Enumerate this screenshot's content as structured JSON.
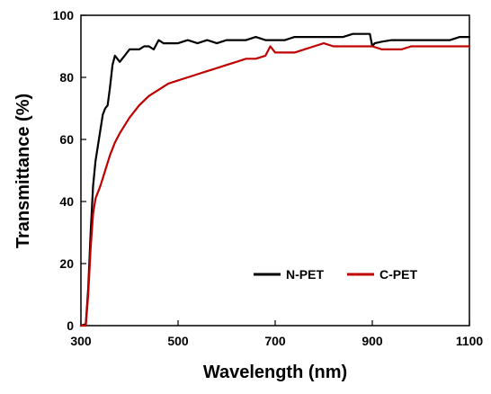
{
  "chart_data": {
    "type": "line",
    "xlabel": "Wavelength (nm)",
    "ylabel": "Transmittance (%)",
    "xlim": [
      300,
      1100
    ],
    "ylim": [
      0,
      100
    ],
    "xticks": [
      300,
      500,
      700,
      900,
      1100
    ],
    "yticks": [
      0,
      20,
      40,
      60,
      80,
      100
    ],
    "x_tick_labels": [
      "300",
      "500",
      "700",
      "900",
      "1100"
    ],
    "y_tick_labels": [
      "0",
      "20",
      "40",
      "60",
      "80",
      "100"
    ],
    "grid": false,
    "legend_position": "bottom-right",
    "series": [
      {
        "name": "N-PET",
        "color": "#000000",
        "points": [
          [
            300,
            0
          ],
          [
            310,
            0.5
          ],
          [
            315,
            12
          ],
          [
            320,
            30
          ],
          [
            325,
            45
          ],
          [
            330,
            53
          ],
          [
            340,
            63
          ],
          [
            345,
            68
          ],
          [
            350,
            70
          ],
          [
            355,
            71
          ],
          [
            360,
            77
          ],
          [
            365,
            84
          ],
          [
            370,
            87
          ],
          [
            380,
            85
          ],
          [
            385,
            86
          ],
          [
            390,
            87
          ],
          [
            400,
            89
          ],
          [
            410,
            89
          ],
          [
            420,
            89
          ],
          [
            430,
            90
          ],
          [
            440,
            90
          ],
          [
            450,
            89
          ],
          [
            460,
            92
          ],
          [
            470,
            91
          ],
          [
            480,
            91
          ],
          [
            500,
            91
          ],
          [
            520,
            92
          ],
          [
            540,
            91
          ],
          [
            560,
            92
          ],
          [
            580,
            91
          ],
          [
            600,
            92
          ],
          [
            620,
            92
          ],
          [
            640,
            92
          ],
          [
            660,
            93
          ],
          [
            680,
            92
          ],
          [
            700,
            92
          ],
          [
            720,
            92
          ],
          [
            740,
            93
          ],
          [
            760,
            93
          ],
          [
            780,
            93
          ],
          [
            800,
            93
          ],
          [
            820,
            93
          ],
          [
            840,
            93
          ],
          [
            860,
            94
          ],
          [
            880,
            94
          ],
          [
            895,
            94
          ],
          [
            900,
            90
          ],
          [
            905,
            91
          ],
          [
            920,
            91.5
          ],
          [
            940,
            92
          ],
          [
            960,
            92
          ],
          [
            980,
            92
          ],
          [
            1000,
            92
          ],
          [
            1020,
            92
          ],
          [
            1040,
            92
          ],
          [
            1060,
            92
          ],
          [
            1080,
            93
          ],
          [
            1100,
            93
          ]
        ]
      },
      {
        "name": "C-PET",
        "color": "#c00000",
        "points": [
          [
            300,
            0
          ],
          [
            310,
            0
          ],
          [
            315,
            10
          ],
          [
            320,
            25
          ],
          [
            325,
            36
          ],
          [
            330,
            41
          ],
          [
            340,
            45
          ],
          [
            350,
            50
          ],
          [
            360,
            55
          ],
          [
            370,
            59
          ],
          [
            380,
            62
          ],
          [
            400,
            67
          ],
          [
            420,
            71
          ],
          [
            440,
            74
          ],
          [
            460,
            76
          ],
          [
            480,
            78
          ],
          [
            500,
            79
          ],
          [
            520,
            80
          ],
          [
            540,
            81
          ],
          [
            560,
            82
          ],
          [
            580,
            83
          ],
          [
            600,
            84
          ],
          [
            620,
            85
          ],
          [
            640,
            86
          ],
          [
            660,
            86
          ],
          [
            680,
            87
          ],
          [
            690,
            90
          ],
          [
            700,
            88
          ],
          [
            720,
            88
          ],
          [
            740,
            88
          ],
          [
            760,
            89
          ],
          [
            780,
            90
          ],
          [
            800,
            91
          ],
          [
            820,
            90
          ],
          [
            840,
            90
          ],
          [
            860,
            90
          ],
          [
            880,
            90
          ],
          [
            900,
            90
          ],
          [
            920,
            89
          ],
          [
            940,
            89
          ],
          [
            960,
            89
          ],
          [
            980,
            90
          ],
          [
            1000,
            90
          ],
          [
            1020,
            90
          ],
          [
            1040,
            90
          ],
          [
            1060,
            90
          ],
          [
            1080,
            90
          ],
          [
            1100,
            90
          ]
        ]
      }
    ]
  }
}
